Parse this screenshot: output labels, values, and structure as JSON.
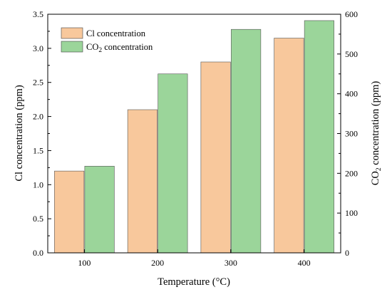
{
  "chart_data": {
    "type": "bar",
    "categories": [
      "100",
      "200",
      "300",
      "400"
    ],
    "series": [
      {
        "name": "Cl concentration",
        "axis": "left",
        "color": "#f8c89c",
        "values": [
          1.2,
          2.1,
          2.8,
          3.15
        ]
      },
      {
        "name": "CO2 concentration",
        "axis": "right",
        "color": "#9bd59a",
        "values": [
          218,
          450,
          562,
          584
        ]
      }
    ],
    "legend": {
      "cl_label": "Cl concentration",
      "co2_label_prefix": "CO",
      "co2_label_sub": "2",
      "co2_label_suffix": " concentration",
      "placement": "top-left"
    },
    "xlabel": "Temperature (°C)",
    "ylabel_left": "Cl concentration (ppm)",
    "ylabel_right_prefix": "CO",
    "ylabel_right_sub": "2",
    "ylabel_right_suffix": " concentration (ppm)",
    "ylim_left": [
      0,
      3.5
    ],
    "ylim_right": [
      0,
      600
    ],
    "yticks_left": [
      "0.0",
      "0.5",
      "1.0",
      "1.5",
      "2.0",
      "2.5",
      "3.0",
      "3.5"
    ],
    "yticks_right": [
      "0",
      "100",
      "200",
      "300",
      "400",
      "500",
      "600"
    ],
    "grid": false
  }
}
